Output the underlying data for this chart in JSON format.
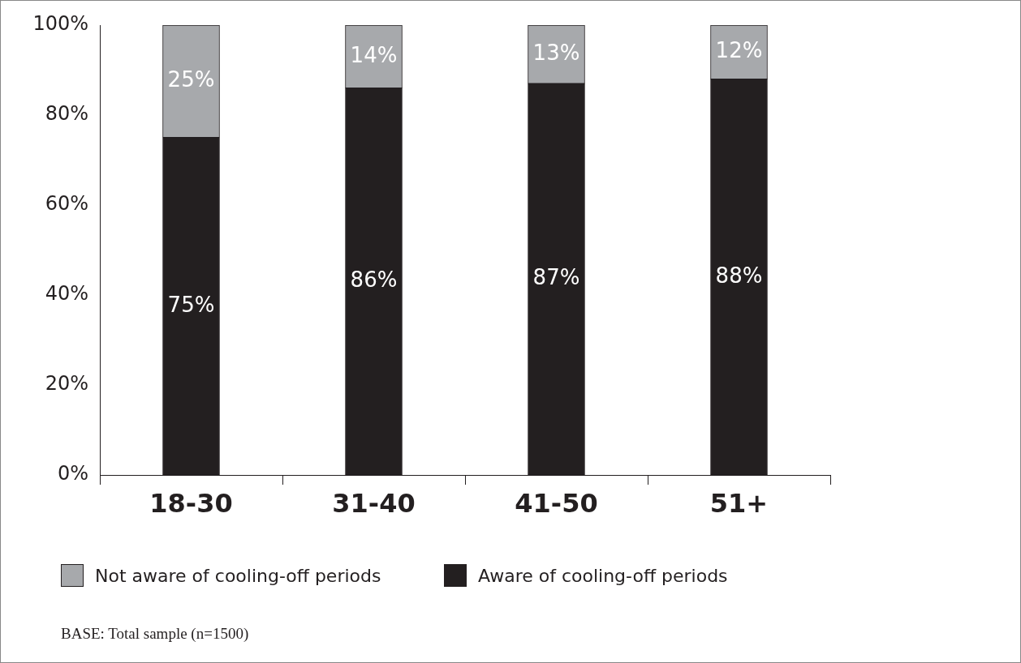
{
  "chart_data": {
    "type": "bar",
    "stacked": true,
    "categories": [
      "18-30",
      "31-40",
      "41-50",
      "51+"
    ],
    "series": [
      {
        "name": "Aware of cooling-off periods",
        "color": "#231f20",
        "values": [
          75,
          86,
          87,
          88
        ],
        "value_labels": [
          "75%",
          "86%",
          "87%",
          "88%"
        ]
      },
      {
        "name": "Not aware of cooling-off periods",
        "color": "#a7a9ac",
        "values": [
          25,
          14,
          13,
          12
        ],
        "value_labels": [
          "25%",
          "14%",
          "13%",
          "12%"
        ]
      }
    ],
    "ylim": [
      0,
      100
    ],
    "yticks": [
      {
        "value": 0,
        "label": "0%"
      },
      {
        "value": 20,
        "label": "20%"
      },
      {
        "value": 40,
        "label": "40%"
      },
      {
        "value": 60,
        "label": "60%"
      },
      {
        "value": 80,
        "label": "80%"
      },
      {
        "value": 100,
        "label": "100%"
      }
    ],
    "grid": false,
    "legend": "bottom left",
    "annotations": [
      "BASE: Total sample (n=1500)"
    ]
  }
}
